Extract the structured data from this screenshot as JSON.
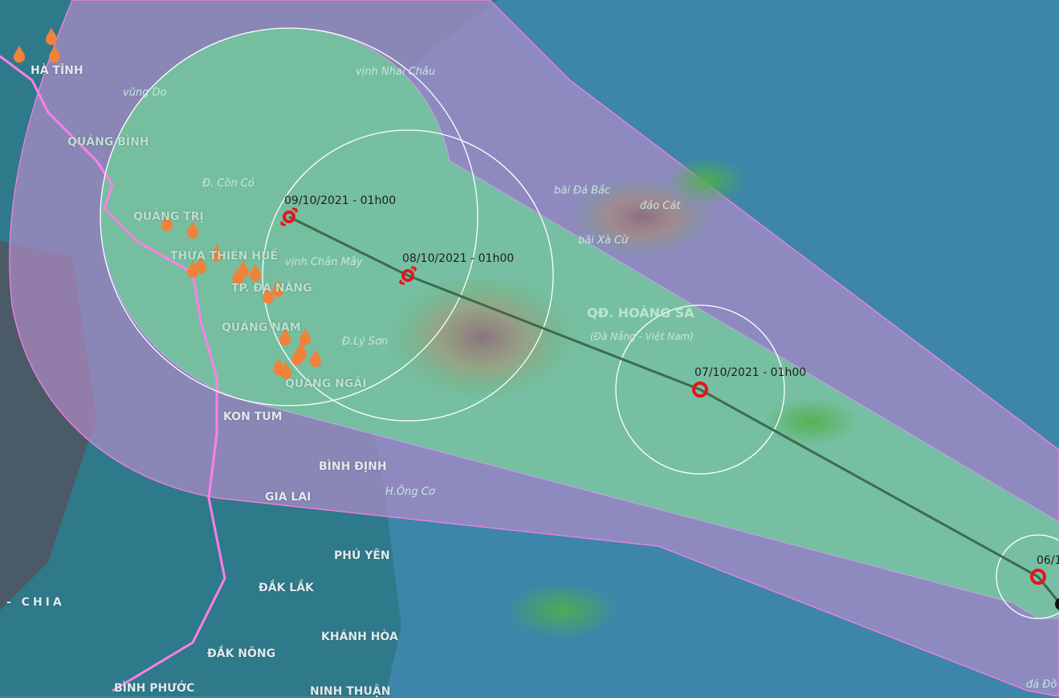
{
  "map": {
    "colors": {
      "sea": "#3d86aa",
      "risk_zone": "#b08cc8",
      "danger_zone": "#6fd09a",
      "track_line": "#3d6b4c",
      "marker": "#e8141c",
      "boundary": "#ff7fe8"
    },
    "track_points": [
      {
        "label": "09/10/2021 - 01h00",
        "icon": "typhoon-icon"
      },
      {
        "label": "08/10/2021 - 01h00",
        "icon": "typhoon-icon"
      },
      {
        "label": "07/10/2021 - 01h00",
        "icon": "low-pressure-circle-icon"
      },
      {
        "label": "06/1",
        "icon": "low-pressure-circle-icon"
      }
    ],
    "provinces": [
      "HÀ TĨNH",
      "QUẢNG BÌNH",
      "QUẢNG TRỊ",
      "THỪA THIÊN HUẾ",
      "TP. ĐÀ NẴNG",
      "QUẢNG NAM",
      "QUẢNG NGÃI",
      "KON TUM",
      "BÌNH ĐỊNH",
      "GIA LAI",
      "PHÚ YÊN",
      "ĐẮK LẮK",
      "KHÁNH HÒA",
      "ĐẮK NÔNG",
      "BÌNH PHƯỚC",
      "NINH THUẬN",
      "- CHIA"
    ],
    "sea_labels": [
      "vũng Do",
      "vịnh Nhai Châu",
      "Đ. Cồn Cỏ",
      "vịnh Chân Mây",
      "Đ.Lý Sơn",
      "bãi Đá Bắc",
      "đảo Cát",
      "bãi Xà Cừ",
      "H.Ông Cơ",
      "đá Đồ"
    ],
    "archipelago": {
      "name": "QĐ. HOÀNG SA",
      "subtitle": "(Đà Nẵng - Việt Nam)"
    },
    "rain_icon": "rain-drop-icon"
  }
}
